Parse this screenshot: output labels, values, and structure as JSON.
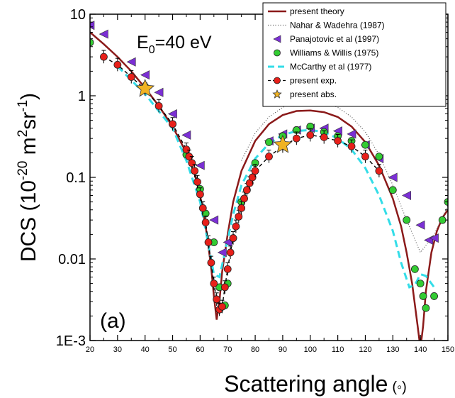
{
  "chart_data": {
    "type": "scatter",
    "xlabel": "Scattering angle",
    "xlabel_unit": "(◦)",
    "ylabel_main": "DCS (10",
    "ylabel_exp1": "-20",
    "ylabel_mid": " m",
    "ylabel_exp2": "2",
    "ylabel_mid2": "sr",
    "ylabel_exp3": "-1",
    "ylabel_end": ")",
    "energy_label_main": "E",
    "energy_label_sub": "0",
    "energy_label_rest": "=40 eV",
    "panel_label": "(a)",
    "y_scale": "log",
    "xlim": [
      20,
      150
    ],
    "ylim": [
      0.001,
      10
    ],
    "x_ticks": [
      20,
      30,
      40,
      50,
      60,
      70,
      80,
      90,
      100,
      110,
      120,
      130,
      140,
      150
    ],
    "x_tick_labels": [
      "20",
      "30",
      "40",
      "50",
      "60",
      "70",
      "80",
      "90",
      "100",
      "110",
      "120",
      "130",
      "140",
      "150"
    ],
    "y_ticks": [
      0.001,
      0.01,
      0.1,
      1,
      10
    ],
    "y_tick_labels": [
      "1E-3",
      "0.01",
      "0.1",
      "1",
      "10"
    ],
    "legend_position": "top-right",
    "series": [
      {
        "name": "present theory",
        "style": "line",
        "color": "#8b1a1a",
        "x": [
          20,
          25,
          30,
          35,
          40,
          45,
          50,
          55,
          58,
          60,
          62,
          64,
          65,
          66,
          67,
          68,
          70,
          72,
          75,
          80,
          85,
          90,
          95,
          100,
          105,
          110,
          115,
          120,
          125,
          130,
          133,
          135,
          137,
          139,
          140,
          141,
          142,
          144,
          146,
          148,
          150
        ],
        "y": [
          6.0,
          4.3,
          3.0,
          2.0,
          1.25,
          0.75,
          0.42,
          0.2,
          0.11,
          0.06,
          0.025,
          0.008,
          0.0035,
          0.0018,
          0.003,
          0.007,
          0.02,
          0.05,
          0.12,
          0.28,
          0.45,
          0.58,
          0.65,
          0.66,
          0.63,
          0.55,
          0.42,
          0.27,
          0.14,
          0.055,
          0.025,
          0.012,
          0.005,
          0.0015,
          0.0008,
          0.0015,
          0.004,
          0.012,
          0.022,
          0.032,
          0.04
        ]
      },
      {
        "name": "Nahar & Wadehra (1987)",
        "style": "dotted",
        "color": "#555555",
        "x": [
          75,
          80,
          85,
          90,
          95,
          100,
          105,
          110,
          115,
          120,
          125,
          130,
          135,
          140,
          145,
          150
        ],
        "y": [
          0.16,
          0.35,
          0.55,
          0.72,
          0.85,
          0.9,
          0.85,
          0.72,
          0.55,
          0.36,
          0.19,
          0.08,
          0.03,
          0.012,
          0.02,
          0.045
        ]
      },
      {
        "name": "Panajotovic et al (1997)",
        "style": "marker",
        "marker": "triangle-left",
        "color": "#7b2fd4",
        "x": [
          20,
          25,
          35,
          40,
          45,
          50,
          55,
          60,
          65,
          68,
          70,
          85,
          90,
          95,
          100,
          105,
          110,
          115,
          120,
          125,
          130,
          135,
          140,
          143,
          145
        ],
        "y": [
          7.3,
          5.7,
          2.6,
          1.8,
          1.1,
          0.6,
          0.33,
          0.14,
          0.03,
          0.012,
          0.016,
          0.28,
          0.34,
          0.38,
          0.4,
          0.4,
          0.37,
          0.34,
          0.25,
          0.17,
          0.1,
          0.06,
          0.026,
          0.017,
          0.018
        ]
      },
      {
        "name": "Williams & Willis (1975)",
        "style": "marker",
        "marker": "circle",
        "color": "#33cc33",
        "x": [
          20,
          40,
          50,
          55,
          60,
          62,
          65,
          67,
          69,
          70,
          72,
          75,
          80,
          85,
          90,
          95,
          100,
          105,
          110,
          115,
          120,
          125,
          130,
          135,
          138,
          140,
          141,
          142,
          145,
          148,
          150
        ],
        "y": [
          4.5,
          1.3,
          0.45,
          0.19,
          0.072,
          0.036,
          0.016,
          0.0045,
          0.0027,
          0.005,
          0.018,
          0.05,
          0.15,
          0.27,
          0.32,
          0.38,
          0.42,
          0.36,
          0.32,
          0.28,
          0.25,
          0.18,
          0.07,
          0.03,
          0.0075,
          0.005,
          0.0035,
          0.0025,
          0.0035,
          0.03,
          0.05
        ]
      },
      {
        "name": "McCarthy et al (1977)",
        "style": "dashed",
        "color": "#33dde8",
        "x": [
          30,
          40,
          50,
          55,
          60,
          63,
          65,
          67,
          69,
          72,
          75,
          80,
          85,
          90,
          95,
          100,
          105,
          110,
          115,
          120,
          125,
          130,
          133,
          136,
          138,
          140,
          142,
          145
        ],
        "y": [
          2.3,
          1.05,
          0.4,
          0.16,
          0.05,
          0.015,
          0.0065,
          0.006,
          0.012,
          0.035,
          0.08,
          0.17,
          0.26,
          0.33,
          0.37,
          0.38,
          0.36,
          0.3,
          0.22,
          0.13,
          0.06,
          0.022,
          0.009,
          0.0045,
          0.0048,
          0.0065,
          0.0062,
          0.0045
        ]
      },
      {
        "name": "present exp.",
        "style": "marker-line",
        "marker": "circle",
        "color": "#e8201a",
        "x": [
          25,
          30,
          35,
          40,
          45,
          50,
          55,
          56,
          57,
          58,
          59,
          60,
          61,
          62,
          63,
          64,
          65,
          66,
          67,
          68,
          69,
          70,
          71,
          72,
          73,
          74,
          75,
          76,
          77,
          78,
          79,
          80,
          85,
          90,
          95,
          100,
          105,
          110,
          115,
          120,
          125
        ],
        "y": [
          3.0,
          2.4,
          1.7,
          1.2,
          0.75,
          0.45,
          0.22,
          0.18,
          0.15,
          0.12,
          0.088,
          0.062,
          0.042,
          0.028,
          0.016,
          0.009,
          0.005,
          0.0032,
          0.0024,
          0.0026,
          0.0045,
          0.0075,
          0.012,
          0.018,
          0.025,
          0.033,
          0.042,
          0.055,
          0.07,
          0.085,
          0.1,
          0.12,
          0.18,
          0.24,
          0.3,
          0.33,
          0.31,
          0.28,
          0.24,
          0.18,
          0.12
        ]
      },
      {
        "name": "present abs.",
        "style": "marker",
        "marker": "star",
        "color": "#f0b323",
        "x": [
          40,
          90
        ],
        "y": [
          1.22,
          0.25
        ]
      }
    ]
  }
}
